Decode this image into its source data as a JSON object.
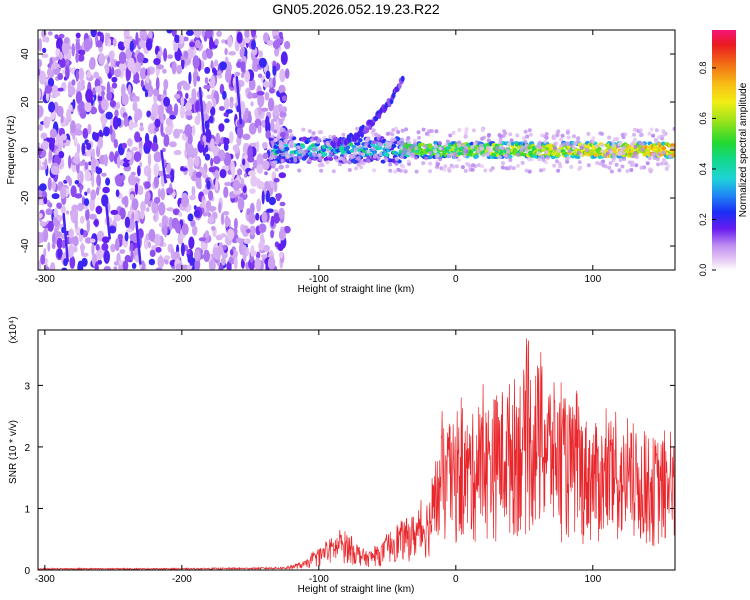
{
  "figure_title": "GN05.2026.052.19.23.R22",
  "chart_data": [
    {
      "type": "heatmap",
      "xlabel": "Height of straight line (km)",
      "ylabel": "Frequency (Hz)",
      "xlim": [
        -305,
        160
      ],
      "ylim": [
        -50,
        50
      ],
      "x_ticks": [
        -300,
        -200,
        -100,
        0,
        100
      ],
      "y_ticks": [
        -40,
        -20,
        0,
        20,
        40
      ],
      "colorbar": {
        "label": "Normalized spectral amplitude",
        "range": [
          0,
          0.95
        ],
        "ticks": [
          0.0,
          0.2,
          0.4,
          0.6,
          0.8
        ]
      },
      "features": [
        {
          "region": "noise",
          "x_range": [
            -305,
            -135
          ],
          "y_range": [
            -50,
            50
          ],
          "amplitude": 0.15
        },
        {
          "region": "ridge",
          "x_range": [
            -135,
            160
          ],
          "y_center": 0,
          "amplitude_max": 0.9
        },
        {
          "region": "branch",
          "x_range": [
            -90,
            -38
          ],
          "y_range": [
            3,
            30
          ],
          "amplitude": 0.2
        }
      ]
    },
    {
      "type": "line",
      "xlabel": "Height of straight line (km)",
      "ylabel": "SNR (10 * v/v)",
      "y_multiplier": "(x10⁴)",
      "xlim": [
        -305,
        160
      ],
      "ylim": [
        0,
        3.9
      ],
      "x_ticks": [
        -300,
        -200,
        -100,
        0,
        100
      ],
      "y_ticks": [
        0,
        1,
        2,
        3
      ],
      "color": "#e8262b",
      "envelope": [
        {
          "x": -305,
          "y": 0.03
        },
        {
          "x": -250,
          "y": 0.03
        },
        {
          "x": -200,
          "y": 0.03
        },
        {
          "x": -150,
          "y": 0.04
        },
        {
          "x": -125,
          "y": 0.05
        },
        {
          "x": -110,
          "y": 0.15
        },
        {
          "x": -100,
          "y": 0.35
        },
        {
          "x": -90,
          "y": 0.55
        },
        {
          "x": -80,
          "y": 0.65
        },
        {
          "x": -75,
          "y": 0.5
        },
        {
          "x": -65,
          "y": 0.3
        },
        {
          "x": -55,
          "y": 0.4
        },
        {
          "x": -45,
          "y": 0.75
        },
        {
          "x": -35,
          "y": 0.85
        },
        {
          "x": -25,
          "y": 1.0
        },
        {
          "x": -18,
          "y": 1.3
        },
        {
          "x": -10,
          "y": 2.3
        },
        {
          "x": 0,
          "y": 2.4
        },
        {
          "x": 10,
          "y": 2.5
        },
        {
          "x": 20,
          "y": 2.7
        },
        {
          "x": 30,
          "y": 2.9
        },
        {
          "x": 40,
          "y": 3.1
        },
        {
          "x": 50,
          "y": 3.3
        },
        {
          "x": 60,
          "y": 3.4
        },
        {
          "x": 70,
          "y": 3.1
        },
        {
          "x": 80,
          "y": 2.8
        },
        {
          "x": 90,
          "y": 2.6
        },
        {
          "x": 100,
          "y": 2.4
        },
        {
          "x": 120,
          "y": 2.3
        },
        {
          "x": 140,
          "y": 2.2
        },
        {
          "x": 160,
          "y": 2.1
        }
      ]
    }
  ]
}
